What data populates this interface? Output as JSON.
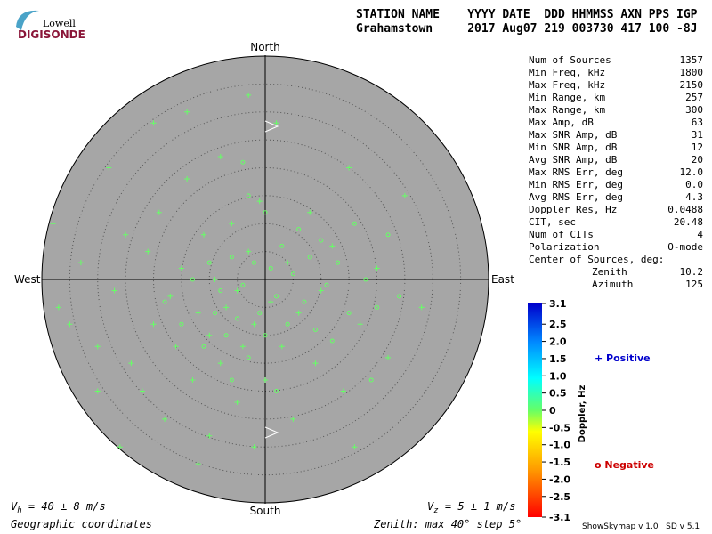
{
  "logo": {
    "top": "Lowell",
    "bottom": "DIGISONDE"
  },
  "header": {
    "line1": "STATION NAME    YYYY DATE  DDD HHMMSS AXN PPS IGP",
    "line2": "Grahamstown     2017 Aug07 219 003730 417 100 -8J"
  },
  "directions": {
    "north": "North",
    "south": "South",
    "east": "East",
    "west": "West"
  },
  "stats": [
    [
      "Num of Sources",
      "1357"
    ],
    [
      "Min Freq, kHz",
      "1800"
    ],
    [
      "Max Freq, kHz",
      "2150"
    ],
    [
      "Min Range, km",
      "257"
    ],
    [
      "Max Range, km",
      "300"
    ],
    [
      "Max Amp, dB",
      "63"
    ],
    [
      "Max SNR Amp, dB",
      "31"
    ],
    [
      "Min SNR Amp, dB",
      "12"
    ],
    [
      "Avg SNR Amp, dB",
      "20"
    ],
    [
      "Max RMS Err, deg",
      "12.0"
    ],
    [
      "Min RMS Err, deg",
      "0.0"
    ],
    [
      "Avg RMS Err, deg",
      "4.3"
    ],
    [
      "Doppler Res, Hz",
      "0.0488"
    ],
    [
      "CIT, sec",
      "20.48"
    ],
    [
      "Num of CITs",
      "4"
    ],
    [
      "Polarization",
      "O-mode"
    ]
  ],
  "center": {
    "title": "Center of Sources, deg:",
    "rows": [
      [
        "Zenith",
        "10.2"
      ],
      [
        "Azimuth",
        "125"
      ]
    ]
  },
  "colorbar": {
    "label": "Doppler, Hz",
    "lim": [
      -3.1,
      3.1
    ],
    "ticks": [
      3.1,
      2.5,
      {
        "value": 2,
        "label": "2.0"
      },
      1.5,
      {
        "value": 1,
        "label": "1.0"
      },
      0.5,
      0,
      -0.5,
      {
        "value": -1,
        "label": "-1.0"
      },
      -1.5,
      {
        "value": -2,
        "label": "-2.0"
      },
      -2.5,
      -3.1
    ]
  },
  "legend": {
    "positive": "+ Positive",
    "negative": "o Negative"
  },
  "footer": {
    "vh": {
      "symbol": "V",
      "sub": "h",
      "text": " = 40 ± 8 m/s"
    },
    "vz": {
      "symbol": "V",
      "sub": "z",
      "text": " = 5 ± 1 m/s"
    },
    "coords": "Geographic coordinates",
    "zenith": "Zenith: max 40°  step 5°",
    "version": "ShowSkymap v 1.0   SD v 5.1"
  },
  "skymap": {
    "max_zenith": 40,
    "step": 5,
    "plus": [
      [
        -38,
        10
      ],
      [
        -37,
        -5
      ],
      [
        -35,
        -8
      ],
      [
        -33,
        3
      ],
      [
        -30,
        -12
      ],
      [
        -28,
        20
      ],
      [
        -27,
        -2
      ],
      [
        -25,
        8
      ],
      [
        -24,
        -15
      ],
      [
        -22,
        -20
      ],
      [
        -21,
        5
      ],
      [
        -20,
        -8
      ],
      [
        -19,
        12
      ],
      [
        -18,
        -25
      ],
      [
        -17,
        -3
      ],
      [
        -16,
        -12
      ],
      [
        -15,
        2
      ],
      [
        -14,
        18
      ],
      [
        -13,
        -18
      ],
      [
        -12,
        -6
      ],
      [
        -11,
        8
      ],
      [
        -10,
        -28
      ],
      [
        -10,
        -10
      ],
      [
        -9,
        0
      ],
      [
        -8,
        -15
      ],
      [
        -8,
        22
      ],
      [
        -7,
        -5
      ],
      [
        -6,
        10
      ],
      [
        -5,
        -22
      ],
      [
        -5,
        -2
      ],
      [
        -4,
        -12
      ],
      [
        -3,
        5
      ],
      [
        -2,
        -30
      ],
      [
        -2,
        -8
      ],
      [
        -1,
        14
      ],
      [
        0,
        -18
      ],
      [
        1,
        -4
      ],
      [
        2,
        28
      ],
      [
        3,
        -12
      ],
      [
        4,
        3
      ],
      [
        5,
        -25
      ],
      [
        6,
        -6
      ],
      [
        8,
        12
      ],
      [
        9,
        -15
      ],
      [
        10,
        -2
      ],
      [
        12,
        6
      ],
      [
        14,
        -20
      ],
      [
        15,
        20
      ],
      [
        17,
        -8
      ],
      [
        20,
        2
      ],
      [
        22,
        -14
      ],
      [
        25,
        15
      ],
      [
        -14,
        30
      ],
      [
        -12,
        -33
      ],
      [
        -3,
        33
      ],
      [
        -20,
        28
      ],
      [
        -30,
        -20
      ],
      [
        -26,
        -30
      ],
      [
        16,
        -30
      ],
      [
        28,
        -5
      ]
    ],
    "circle": [
      [
        -18,
        -4
      ],
      [
        -15,
        -8
      ],
      [
        -13,
        0
      ],
      [
        -11,
        -12
      ],
      [
        -10,
        3
      ],
      [
        -9,
        -6
      ],
      [
        -8,
        -2
      ],
      [
        -7,
        -10
      ],
      [
        -6,
        4
      ],
      [
        -5,
        -7
      ],
      [
        -4,
        -1
      ],
      [
        -3,
        -14
      ],
      [
        -2,
        3
      ],
      [
        -1,
        -6
      ],
      [
        0,
        -10
      ],
      [
        1,
        2
      ],
      [
        2,
        -3
      ],
      [
        3,
        6
      ],
      [
        4,
        -8
      ],
      [
        5,
        1
      ],
      [
        6,
        9
      ],
      [
        7,
        -4
      ],
      [
        8,
        4
      ],
      [
        9,
        -9
      ],
      [
        10,
        7
      ],
      [
        11,
        -1
      ],
      [
        12,
        -11
      ],
      [
        13,
        3
      ],
      [
        15,
        -6
      ],
      [
        16,
        10
      ],
      [
        18,
        0
      ],
      [
        20,
        -5
      ],
      [
        22,
        8
      ],
      [
        -4,
        21
      ],
      [
        -3,
        15
      ],
      [
        0,
        12
      ],
      [
        -6,
        -18
      ],
      [
        2,
        -20
      ],
      [
        19,
        -18
      ],
      [
        24,
        -3
      ]
    ]
  }
}
